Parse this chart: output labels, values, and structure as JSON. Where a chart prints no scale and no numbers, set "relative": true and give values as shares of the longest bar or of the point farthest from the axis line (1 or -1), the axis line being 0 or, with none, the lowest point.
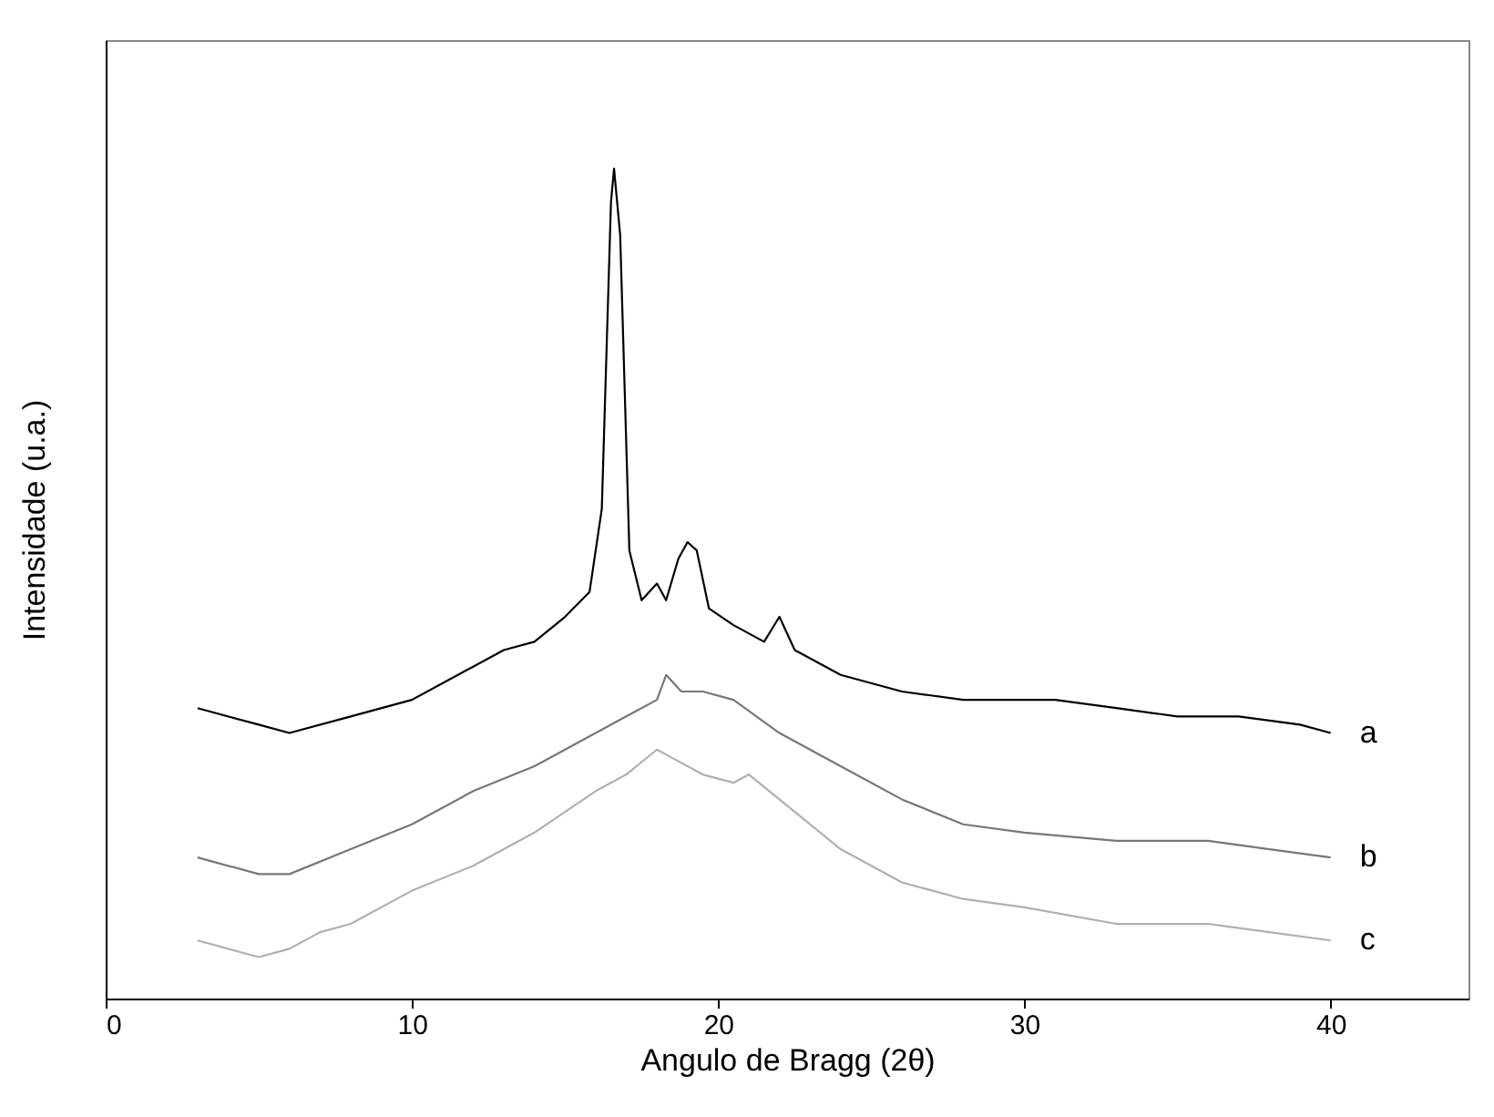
{
  "chart_data": {
    "type": "line",
    "xlabel": "Angulo de Bragg (2θ)",
    "ylabel": "Intensidade (u.a.)",
    "relative": true,
    "xlim": [
      0,
      44.5
    ],
    "xticks": [
      0,
      10,
      20,
      30,
      40
    ],
    "grid": false,
    "legend": false,
    "marker": "none",
    "line_style": "solid",
    "series": [
      {
        "name": "a",
        "color": "#000000",
        "x": [
          3,
          5,
          6,
          8,
          10,
          12,
          13,
          14,
          15,
          15.8,
          16.2,
          16.5,
          16.6,
          16.8,
          17.1,
          17.5,
          18,
          18.3,
          18.7,
          19,
          19.3,
          19.7,
          20.5,
          21.5,
          22,
          22.5,
          24,
          26,
          28,
          30,
          31,
          33,
          35,
          37,
          39,
          40
        ],
        "values": [
          0.35,
          0.33,
          0.32,
          0.34,
          0.36,
          0.4,
          0.42,
          0.43,
          0.46,
          0.49,
          0.59,
          0.96,
          1,
          0.92,
          0.54,
          0.48,
          0.5,
          0.48,
          0.53,
          0.55,
          0.54,
          0.47,
          0.45,
          0.43,
          0.46,
          0.42,
          0.39,
          0.37,
          0.36,
          0.36,
          0.36,
          0.35,
          0.34,
          0.34,
          0.33,
          0.32
        ]
      },
      {
        "name": "b",
        "color": "#777777",
        "x": [
          3,
          5,
          6,
          8,
          10,
          12,
          14,
          16,
          17,
          18,
          18.3,
          18.8,
          19.5,
          20.5,
          22,
          24,
          26,
          28,
          30,
          33,
          36,
          38,
          40
        ],
        "values": [
          0.17,
          0.15,
          0.15,
          0.18,
          0.21,
          0.25,
          0.28,
          0.32,
          0.34,
          0.36,
          0.39,
          0.37,
          0.37,
          0.36,
          0.32,
          0.28,
          0.24,
          0.21,
          0.2,
          0.19,
          0.19,
          0.18,
          0.17
        ]
      },
      {
        "name": "c",
        "color": "#b0b0b0",
        "x": [
          3,
          5,
          6,
          7,
          8,
          10,
          12,
          14,
          16,
          17,
          18,
          18.5,
          19.5,
          20.5,
          21,
          22,
          24,
          26,
          28,
          30,
          33,
          36,
          38,
          40
        ],
        "values": [
          0.07,
          0.05,
          0.06,
          0.08,
          0.09,
          0.13,
          0.16,
          0.2,
          0.25,
          0.27,
          0.3,
          0.29,
          0.27,
          0.26,
          0.27,
          0.24,
          0.18,
          0.14,
          0.12,
          0.11,
          0.09,
          0.09,
          0.08,
          0.07
        ]
      }
    ]
  }
}
